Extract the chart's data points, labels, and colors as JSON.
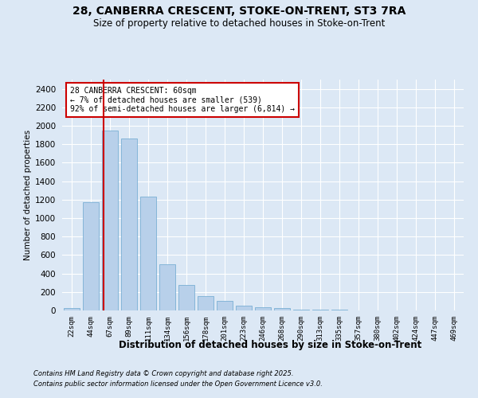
{
  "title": "28, CANBERRA CRESCENT, STOKE-ON-TRENT, ST3 7RA",
  "subtitle": "Size of property relative to detached houses in Stoke-on-Trent",
  "xlabel": "Distribution of detached houses by size in Stoke-on-Trent",
  "ylabel": "Number of detached properties",
  "categories": [
    "22sqm",
    "44sqm",
    "67sqm",
    "89sqm",
    "111sqm",
    "134sqm",
    "156sqm",
    "178sqm",
    "201sqm",
    "223sqm",
    "246sqm",
    "268sqm",
    "290sqm",
    "313sqm",
    "335sqm",
    "357sqm",
    "380sqm",
    "402sqm",
    "424sqm",
    "447sqm",
    "469sqm"
  ],
  "values": [
    25,
    1170,
    1950,
    1860,
    1230,
    500,
    275,
    155,
    100,
    55,
    35,
    25,
    12,
    8,
    5,
    4,
    3,
    2,
    2,
    1,
    1
  ],
  "bar_color": "#b8d0ea",
  "bar_edge_color": "#7aafd4",
  "highlight_color": "#cc0000",
  "annotation_box_color": "#ffffff",
  "annotation_box_edge": "#cc0000",
  "annotation_title": "28 CANBERRA CRESCENT: 60sqm",
  "annotation_line1": "← 7% of detached houses are smaller (539)",
  "annotation_line2": "92% of semi-detached houses are larger (6,814) →",
  "ylim": [
    0,
    2500
  ],
  "yticks": [
    0,
    200,
    400,
    600,
    800,
    1000,
    1200,
    1400,
    1600,
    1800,
    2000,
    2200,
    2400
  ],
  "background_color": "#dce8f5",
  "grid_color": "#ffffff",
  "footer_line1": "Contains HM Land Registry data © Crown copyright and database right 2025.",
  "footer_line2": "Contains public sector information licensed under the Open Government Licence v3.0."
}
